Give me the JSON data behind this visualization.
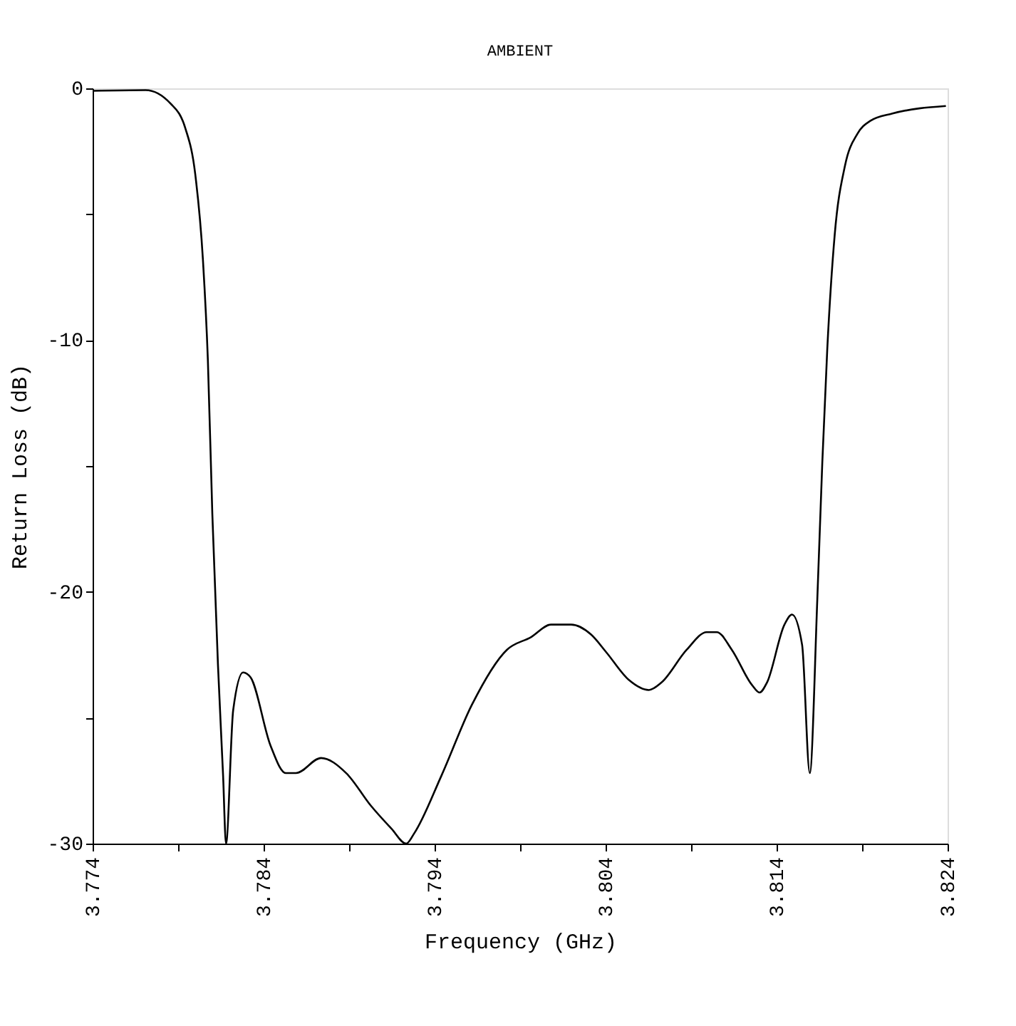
{
  "chart_data": {
    "type": "line",
    "title": "AMBIENT",
    "xlabel": "Frequency (GHz)",
    "ylabel": "Return Loss (dB)",
    "xlim": [
      3.774,
      3.824
    ],
    "ylim": [
      -30,
      0
    ],
    "xticks": [
      3.774,
      {
        "value": 3.779,
        "label": null
      },
      3.784,
      {
        "value": 3.789,
        "label": null
      },
      3.794,
      {
        "value": 3.799,
        "label": null
      },
      3.804,
      {
        "value": 3.809,
        "label": null
      },
      3.814,
      {
        "value": 3.819,
        "label": null
      },
      3.824
    ],
    "yticks": [
      {
        "value": -30,
        "label": "-30"
      },
      {
        "value": -25,
        "label": null
      },
      {
        "value": -20,
        "label": "-20"
      },
      {
        "value": -15,
        "label": null
      },
      {
        "value": -10,
        "label": "-10"
      },
      {
        "value": -5,
        "label": null
      },
      0
    ],
    "grid": false,
    "series": [
      {
        "color": "#000000",
        "x": [
          3.774,
          3.7771,
          3.77855,
          3.77943,
          3.78,
          3.78045,
          3.78074,
          3.781,
          3.78133,
          3.78163,
          3.7818,
          3.78222,
          3.7828,
          3.78324,
          3.7844,
          3.7853,
          3.78589,
          3.78736,
          3.78883,
          3.79028,
          3.79147,
          3.79234,
          3.7928,
          3.7944,
          3.79617,
          3.79823,
          3.79963,
          3.80081,
          3.80198,
          3.80316,
          3.80404,
          3.80536,
          3.80653,
          3.80727,
          3.80874,
          3.80991,
          3.8105,
          3.81138,
          3.81256,
          3.813,
          3.81344,
          3.81446,
          3.8149,
          3.81549,
          3.81594,
          3.81638,
          3.81667,
          3.81696,
          3.8174,
          3.81799,
          3.81873,
          3.81946,
          3.82078,
          3.8239
        ],
        "values": [
          -0.1,
          -0.07,
          -0.6,
          -1.6,
          -3.4,
          -6.8,
          -10.8,
          -16.9,
          -22.9,
          -27.3,
          -30,
          -24.7,
          -23.2,
          -23.4,
          -26.1,
          -27.2,
          -27.2,
          -26.6,
          -27.2,
          -28.5,
          -29.4,
          -30,
          -29.6,
          -27.3,
          -24.5,
          -22.3,
          -21.8,
          -21.3,
          -21.3,
          -21.7,
          -22.4,
          -23.5,
          -23.9,
          -23.6,
          -22.3,
          -21.6,
          -21.6,
          -22.3,
          -23.7,
          -24.0,
          -23.6,
          -21.3,
          -20.9,
          -22.1,
          -27.2,
          -20.3,
          -14.9,
          -10.4,
          -5.8,
          -3.1,
          -1.8,
          -1.3,
          -1.0,
          -0.7
        ]
      }
    ]
  }
}
